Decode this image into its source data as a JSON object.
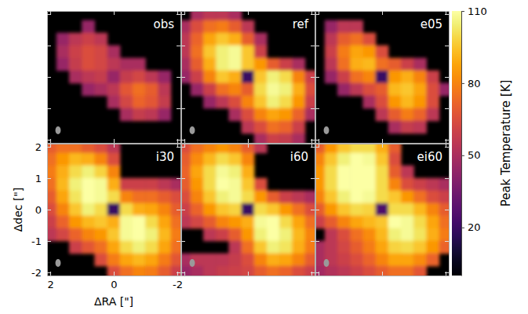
{
  "chart_data": {
    "type": "heatmap",
    "xlabel": "ΔRA [\"]",
    "ylabel": "Δdec [\"]",
    "x": [
      2,
      1.6,
      1.2,
      0.8,
      0.4,
      0,
      -0.4,
      -0.8,
      -1.2,
      -1.6,
      -2
    ],
    "y": [
      2,
      1.6,
      1.2,
      0.8,
      0.4,
      0,
      -0.4,
      -0.8,
      -1.2,
      -1.6,
      -2
    ],
    "xlim": [
      2.1,
      -2.1
    ],
    "ylim": [
      -2.1,
      2.1
    ],
    "xticks": [
      2,
      0,
      -2
    ],
    "yticks": [
      -2,
      -1,
      0,
      1,
      2
    ],
    "colorbar": {
      "label": "Peak Temperature [K]",
      "range": [
        0,
        110
      ],
      "ticks": [
        20,
        50,
        80,
        110
      ]
    },
    "beam": [
      0.25,
      0.17
    ],
    "panels": [
      {
        "title": "obs",
        "tick_labels": false,
        "cells": [
          [
            null,
            null,
            null,
            null,
            null,
            null,
            null,
            null,
            null,
            null,
            null
          ],
          [
            null,
            null,
            null,
            45,
            null,
            null,
            null,
            null,
            null,
            null,
            null
          ],
          [
            null,
            45,
            55,
            60,
            55,
            null,
            null,
            null,
            null,
            null,
            null
          ],
          [
            null,
            50,
            60,
            65,
            62,
            50,
            null,
            null,
            null,
            null,
            null
          ],
          [
            null,
            45,
            58,
            65,
            62,
            55,
            50,
            50,
            null,
            null,
            null
          ],
          [
            null,
            null,
            50,
            55,
            58,
            45,
            58,
            62,
            55,
            45,
            null
          ],
          [
            null,
            null,
            null,
            45,
            50,
            55,
            68,
            75,
            70,
            55,
            null
          ],
          [
            null,
            null,
            null,
            null,
            null,
            50,
            62,
            72,
            68,
            58,
            null
          ],
          [
            null,
            null,
            null,
            null,
            null,
            null,
            50,
            58,
            55,
            45,
            null
          ],
          [
            null,
            null,
            null,
            null,
            null,
            null,
            null,
            null,
            null,
            null,
            null
          ],
          [
            null,
            null,
            null,
            null,
            null,
            null,
            null,
            null,
            null,
            null,
            null
          ]
        ]
      },
      {
        "title": "ref",
        "tick_labels": false,
        "cells": [
          [
            null,
            50,
            55,
            55,
            50,
            null,
            null,
            null,
            null,
            null,
            null
          ],
          [
            50,
            65,
            75,
            78,
            70,
            55,
            null,
            null,
            null,
            null,
            null
          ],
          [
            55,
            72,
            88,
            95,
            90,
            70,
            50,
            null,
            null,
            null,
            null
          ],
          [
            55,
            75,
            95,
            105,
            108,
            95,
            60,
            null,
            null,
            null,
            null
          ],
          [
            50,
            70,
            90,
            105,
            108,
            95,
            85,
            70,
            60,
            50,
            null
          ],
          [
            45,
            60,
            80,
            95,
            90,
            20,
            95,
            105,
            100,
            80,
            60
          ],
          [
            null,
            45,
            60,
            75,
            80,
            70,
            100,
            108,
            105,
            90,
            65
          ],
          [
            null,
            null,
            45,
            55,
            65,
            80,
            95,
            105,
            100,
            85,
            60
          ],
          [
            null,
            null,
            null,
            null,
            50,
            65,
            80,
            88,
            85,
            72,
            50
          ],
          [
            null,
            null,
            null,
            null,
            null,
            55,
            65,
            75,
            72,
            60,
            null
          ],
          [
            null,
            null,
            null,
            null,
            null,
            null,
            50,
            60,
            58,
            50,
            null
          ]
        ]
      },
      {
        "title": "e05",
        "tick_labels": false,
        "cells": [
          [
            null,
            null,
            null,
            null,
            null,
            null,
            null,
            null,
            null,
            null,
            null
          ],
          [
            null,
            45,
            55,
            55,
            null,
            null,
            null,
            null,
            null,
            null,
            null
          ],
          [
            null,
            55,
            70,
            75,
            65,
            null,
            null,
            null,
            null,
            null,
            null
          ],
          [
            null,
            60,
            78,
            88,
            85,
            65,
            null,
            null,
            null,
            null,
            null
          ],
          [
            null,
            55,
            75,
            90,
            92,
            75,
            70,
            60,
            50,
            null,
            null
          ],
          [
            null,
            45,
            60,
            75,
            80,
            20,
            85,
            90,
            80,
            60,
            null
          ],
          [
            null,
            null,
            45,
            55,
            65,
            70,
            92,
            95,
            88,
            65,
            45
          ],
          [
            null,
            null,
            null,
            null,
            50,
            65,
            85,
            92,
            85,
            65,
            null
          ],
          [
            null,
            null,
            null,
            null,
            null,
            55,
            70,
            78,
            72,
            55,
            null
          ],
          [
            null,
            null,
            null,
            null,
            null,
            null,
            50,
            58,
            55,
            null,
            null
          ],
          [
            null,
            null,
            null,
            null,
            null,
            null,
            null,
            null,
            null,
            null,
            null
          ]
        ]
      },
      {
        "title": "i30",
        "cells": [
          [
            70,
            75,
            75,
            70,
            65,
            55,
            null,
            null,
            null,
            null,
            null
          ],
          [
            75,
            85,
            92,
            90,
            80,
            65,
            null,
            null,
            null,
            null,
            null
          ],
          [
            78,
            90,
            100,
            105,
            98,
            80,
            null,
            null,
            null,
            null,
            null
          ],
          [
            75,
            92,
            105,
            110,
            108,
            90,
            60,
            60,
            60,
            55,
            50
          ],
          [
            70,
            88,
            102,
            110,
            108,
            100,
            80,
            75,
            75,
            70,
            65
          ],
          [
            65,
            80,
            95,
            105,
            100,
            20,
            100,
            90,
            88,
            80,
            70
          ],
          [
            60,
            72,
            85,
            92,
            95,
            90,
            108,
            110,
            100,
            88,
            75
          ],
          [
            55,
            62,
            72,
            80,
            85,
            95,
            108,
            110,
            105,
            92,
            78
          ],
          [
            null,
            null,
            60,
            68,
            75,
            88,
            100,
            105,
            100,
            88,
            75
          ],
          [
            null,
            null,
            null,
            null,
            65,
            78,
            88,
            92,
            88,
            78,
            68
          ],
          [
            null,
            null,
            null,
            null,
            null,
            65,
            75,
            80,
            78,
            70,
            60
          ]
        ]
      },
      {
        "title": "i60",
        "tick_labels": false,
        "cells": [
          [
            65,
            75,
            80,
            85,
            80,
            70,
            55,
            null,
            null,
            null,
            null
          ],
          [
            70,
            82,
            92,
            100,
            95,
            80,
            null,
            null,
            null,
            null,
            null
          ],
          [
            72,
            88,
            100,
            108,
            105,
            90,
            null,
            null,
            null,
            null,
            null
          ],
          [
            70,
            85,
            100,
            110,
            108,
            95,
            65,
            null,
            null,
            null,
            null
          ],
          [
            65,
            80,
            95,
            105,
            108,
            100,
            85,
            70,
            60,
            55,
            50
          ],
          [
            60,
            72,
            85,
            95,
            98,
            20,
            100,
            95,
            85,
            75,
            65
          ],
          [
            55,
            62,
            70,
            80,
            85,
            90,
            108,
            110,
            100,
            88,
            75
          ],
          [
            null,
            null,
            55,
            60,
            70,
            85,
            105,
            110,
            105,
            92,
            80
          ],
          [
            null,
            null,
            null,
            null,
            55,
            75,
            95,
            105,
            102,
            90,
            78
          ],
          [
            50,
            55,
            55,
            55,
            58,
            65,
            80,
            90,
            88,
            80,
            70
          ],
          [
            45,
            50,
            55,
            58,
            60,
            62,
            70,
            75,
            72,
            65,
            60
          ]
        ]
      },
      {
        "title": "ei60",
        "tick_labels": false,
        "cells": [
          [
            70,
            85,
            95,
            100,
            100,
            90,
            70,
            null,
            null,
            null,
            null
          ],
          [
            80,
            95,
            105,
            110,
            108,
            95,
            65,
            null,
            null,
            null,
            null
          ],
          [
            85,
            100,
            110,
            110,
            110,
            100,
            70,
            55,
            null,
            null,
            null
          ],
          [
            85,
            100,
            110,
            110,
            110,
            100,
            80,
            65,
            60,
            55,
            50
          ],
          [
            80,
            95,
            105,
            110,
            108,
            100,
            95,
            85,
            75,
            65,
            60
          ],
          [
            70,
            85,
            95,
            100,
            98,
            25,
            100,
            100,
            92,
            80,
            70
          ],
          [
            60,
            70,
            80,
            88,
            92,
            95,
            110,
            108,
            100,
            88,
            75
          ],
          [
            null,
            55,
            65,
            75,
            82,
            92,
            105,
            108,
            102,
            90,
            78
          ],
          [
            50,
            55,
            62,
            70,
            78,
            88,
            98,
            100,
            95,
            85,
            72
          ],
          [
            50,
            55,
            60,
            65,
            72,
            80,
            88,
            88,
            82,
            72,
            null
          ],
          [
            48,
            52,
            55,
            60,
            65,
            70,
            75,
            75,
            68,
            null,
            null
          ]
        ]
      }
    ]
  }
}
